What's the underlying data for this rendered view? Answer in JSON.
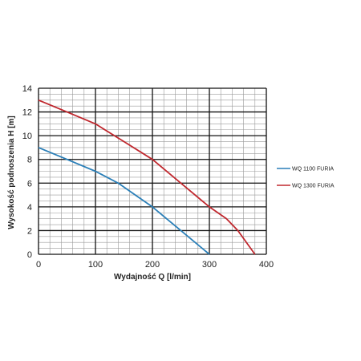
{
  "chart_data": {
    "type": "line",
    "xlabel": "Wydajność Q [l/min]",
    "ylabel": "Wysokość podnoszenia H [m]",
    "xlim": [
      0,
      400
    ],
    "ylim": [
      0,
      14
    ],
    "x_ticks": [
      0,
      100,
      200,
      300,
      400
    ],
    "y_ticks": [
      0,
      2,
      4,
      6,
      8,
      10,
      12,
      14
    ],
    "grid": true,
    "legend_position": "right",
    "series": [
      {
        "name": "WQ 1100 FURIA",
        "color": "#2a7fb8",
        "points": [
          [
            0,
            9
          ],
          [
            50,
            8
          ],
          [
            100,
            7
          ],
          [
            140,
            6
          ],
          [
            170,
            5
          ],
          [
            200,
            4
          ],
          [
            250,
            2
          ],
          [
            300,
            0
          ]
        ]
      },
      {
        "name": "WQ 1300 FURIA",
        "color": "#c0282e",
        "points": [
          [
            0,
            13
          ],
          [
            50,
            12
          ],
          [
            100,
            11
          ],
          [
            150,
            9.5
          ],
          [
            200,
            8
          ],
          [
            250,
            6
          ],
          [
            300,
            4
          ],
          [
            330,
            3
          ],
          [
            350,
            2
          ],
          [
            380,
            0
          ]
        ]
      }
    ]
  }
}
